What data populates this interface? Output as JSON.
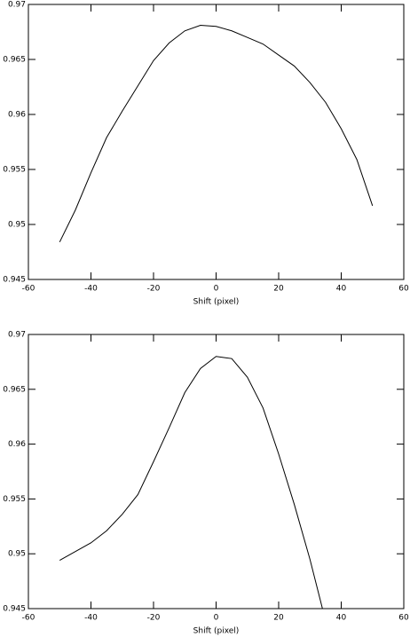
{
  "chart_data": [
    {
      "type": "line",
      "xlabel": "Shift (pixel)",
      "x": [
        -50,
        -45,
        -40,
        -35,
        -30,
        -25,
        -20,
        -15,
        -10,
        -5,
        0,
        5,
        10,
        15,
        20,
        25,
        30,
        35,
        40,
        45,
        50
      ],
      "series": [
        {
          "color": "#000000",
          "values": [
            0.9484,
            0.9513,
            0.9547,
            0.9579,
            0.9603,
            0.9626,
            0.9649,
            0.9665,
            0.9676,
            0.9681,
            0.968,
            0.9676,
            0.967,
            0.9664,
            0.9654,
            0.9644,
            0.9629,
            0.9611,
            0.9587,
            0.9559,
            0.9517
          ]
        }
      ],
      "xlim": [
        -60,
        60
      ],
      "xticks": [
        -60,
        -40,
        -20,
        0,
        20,
        40,
        60
      ],
      "ylim": [
        0.945,
        0.97
      ],
      "yticks": [
        0.945,
        0.95,
        0.955,
        0.96,
        0.965,
        0.97
      ]
    },
    {
      "type": "line",
      "xlabel": "Shift (pixel)",
      "x": [
        -50,
        -45,
        -40,
        -35,
        -30,
        -25,
        -20,
        -15,
        -10,
        -5,
        0,
        5,
        10,
        15,
        20,
        25,
        30,
        34
      ],
      "series": [
        {
          "color": "#000000",
          "values": [
            0.9494,
            0.9502,
            0.951,
            0.9521,
            0.9536,
            0.9554,
            0.9584,
            0.9615,
            0.9647,
            0.9669,
            0.968,
            0.9678,
            0.9661,
            0.9633,
            0.9591,
            0.9545,
            0.9495,
            0.945
          ]
        }
      ],
      "xlim": [
        -60,
        60
      ],
      "xticks": [
        -60,
        -40,
        -20,
        0,
        20,
        40,
        60
      ],
      "ylim": [
        0.945,
        0.97
      ],
      "yticks": [
        0.945,
        0.95,
        0.955,
        0.96,
        0.965,
        0.97
      ]
    }
  ]
}
